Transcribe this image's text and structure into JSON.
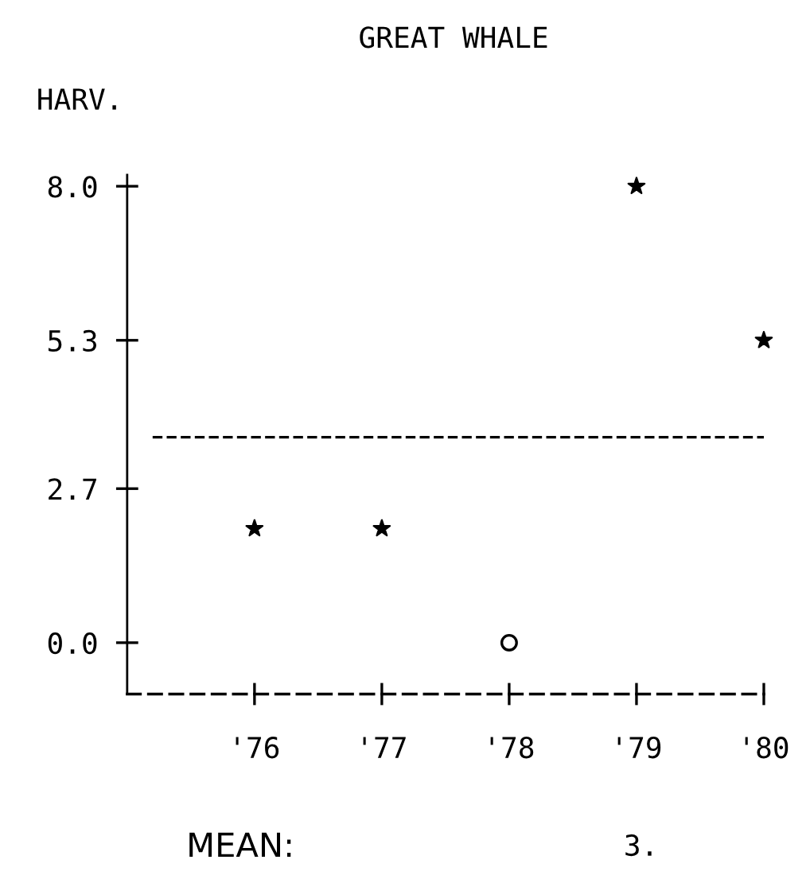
{
  "chart_data": {
    "type": "scatter",
    "title": "GREAT WHALE",
    "ylabel": "HARV.",
    "categories": [
      "'76",
      "'77",
      "'78",
      "'79",
      "'80"
    ],
    "series": [
      {
        "values": [
          2,
          2,
          null,
          8,
          5.3
        ],
        "color": "#000000",
        "marker": "star"
      },
      {
        "values": [
          null,
          null,
          0,
          null,
          null
        ],
        "color": "#000000",
        "marker": "circle"
      }
    ],
    "ylim": [
      -0.9,
      8.2
    ],
    "yticks": [
      {
        "value": 8,
        "label": "8.0"
      },
      5.3,
      2.7,
      {
        "value": 0,
        "label": "0.0"
      }
    ],
    "ref_lines": [
      {
        "axis": "y",
        "value": 3.6,
        "color": "#000000",
        "line_style": "dashed"
      }
    ],
    "annotations": [
      "MEAN:",
      "3."
    ],
    "grid": false,
    "legend": false
  }
}
